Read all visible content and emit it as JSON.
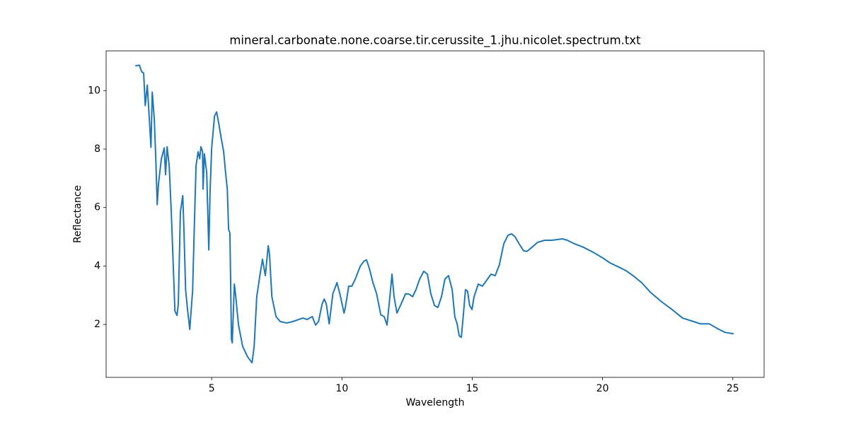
{
  "chart_data": {
    "type": "line",
    "title": "mineral.carbonate.none.coarse.tir.cerussite_1.jhu.nicolet.spectrum.txt",
    "x_label": "Wavelength",
    "y_label": "Reflectance",
    "xlim": [
      0.95,
      26.2
    ],
    "ylim": [
      0.19,
      11.36
    ],
    "xticks": [
      5,
      10,
      15,
      20,
      25
    ],
    "yticks": [
      2,
      4,
      6,
      8,
      10
    ],
    "grid": false,
    "x": [
      2.07,
      2.23,
      2.31,
      2.39,
      2.45,
      2.53,
      2.61,
      2.67,
      2.72,
      2.8,
      2.86,
      2.91,
      2.96,
      3.07,
      3.18,
      3.23,
      3.29,
      3.37,
      3.45,
      3.53,
      3.59,
      3.67,
      3.72,
      3.8,
      3.89,
      3.94,
      4.0,
      4.08,
      4.16,
      4.27,
      4.32,
      4.4,
      4.48,
      4.54,
      4.59,
      4.65,
      4.67,
      4.72,
      4.81,
      4.89,
      4.94,
      5.0,
      5.11,
      5.19,
      5.27,
      5.36,
      5.46,
      5.54,
      5.6,
      5.65,
      5.7,
      5.76,
      5.79,
      5.87,
      5.92,
      6.03,
      6.19,
      6.38,
      6.55,
      6.63,
      6.73,
      6.85,
      6.95,
      7.06,
      7.17,
      7.22,
      7.31,
      7.47,
      7.63,
      7.88,
      8.12,
      8.34,
      8.5,
      8.66,
      8.86,
      8.99,
      9.1,
      9.24,
      9.32,
      9.4,
      9.51,
      9.65,
      9.81,
      9.92,
      10.08,
      10.13,
      10.26,
      10.38,
      10.51,
      10.7,
      10.84,
      10.94,
      11.05,
      11.19,
      11.33,
      11.49,
      11.62,
      11.73,
      11.84,
      11.92,
      12.0,
      12.11,
      12.27,
      12.44,
      12.57,
      12.71,
      12.84,
      12.98,
      13.14,
      13.28,
      13.41,
      13.55,
      13.68,
      13.82,
      13.95,
      14.09,
      14.23,
      14.33,
      14.42,
      14.5,
      14.58,
      14.66,
      14.74,
      14.82,
      14.9,
      14.99,
      15.07,
      15.23,
      15.39,
      15.56,
      15.72,
      15.88,
      16.04,
      16.21,
      16.37,
      16.51,
      16.64,
      16.8,
      16.97,
      17.1,
      17.29,
      17.51,
      17.78,
      18.05,
      18.32,
      18.46,
      18.65,
      18.92,
      19.27,
      19.68,
      20.0,
      20.28,
      20.63,
      20.9,
      21.17,
      21.5,
      21.85,
      22.26,
      22.67,
      23.07,
      23.49,
      23.76,
      24.1,
      24.43,
      24.7,
      25.03
    ],
    "series": [
      {
        "name": "Reflectance",
        "color": "#1f77b4",
        "values": [
          10.85,
          10.87,
          10.65,
          10.6,
          9.49,
          10.19,
          9.0,
          8.06,
          9.95,
          9.0,
          7.55,
          6.1,
          6.82,
          7.67,
          8.04,
          7.12,
          8.08,
          7.43,
          5.85,
          3.92,
          2.46,
          2.31,
          2.7,
          5.85,
          6.41,
          5.12,
          3.18,
          2.46,
          1.83,
          3.18,
          4.88,
          7.43,
          7.91,
          7.67,
          8.08,
          7.91,
          6.63,
          7.84,
          7.19,
          4.55,
          6.58,
          8.04,
          9.13,
          9.27,
          8.89,
          8.4,
          7.91,
          7.14,
          6.63,
          5.25,
          5.13,
          1.49,
          1.37,
          3.38,
          2.99,
          1.98,
          1.25,
          0.89,
          0.69,
          1.25,
          2.95,
          3.67,
          4.23,
          3.67,
          4.69,
          4.4,
          2.95,
          2.27,
          2.1,
          2.05,
          2.1,
          2.17,
          2.22,
          2.17,
          2.27,
          1.98,
          2.1,
          2.7,
          2.87,
          2.7,
          2.02,
          3.05,
          3.43,
          3.05,
          2.39,
          2.58,
          3.31,
          3.31,
          3.55,
          3.99,
          4.16,
          4.21,
          3.92,
          3.43,
          3.05,
          2.33,
          2.27,
          1.98,
          2.95,
          3.72,
          2.95,
          2.39,
          2.7,
          3.05,
          3.04,
          2.95,
          3.19,
          3.55,
          3.82,
          3.72,
          3.05,
          2.65,
          2.58,
          2.95,
          3.55,
          3.67,
          3.19,
          2.27,
          2.02,
          1.61,
          1.56,
          2.34,
          3.19,
          3.14,
          2.65,
          2.51,
          2.95,
          3.38,
          3.31,
          3.52,
          3.72,
          3.67,
          4.04,
          4.76,
          5.05,
          5.1,
          5.0,
          4.76,
          4.52,
          4.5,
          4.64,
          4.81,
          4.88,
          4.88,
          4.91,
          4.93,
          4.88,
          4.76,
          4.64,
          4.45,
          4.28,
          4.11,
          3.96,
          3.84,
          3.67,
          3.43,
          3.09,
          2.78,
          2.51,
          2.22,
          2.1,
          2.02,
          2.02,
          1.85,
          1.73,
          1.68
        ]
      }
    ]
  }
}
